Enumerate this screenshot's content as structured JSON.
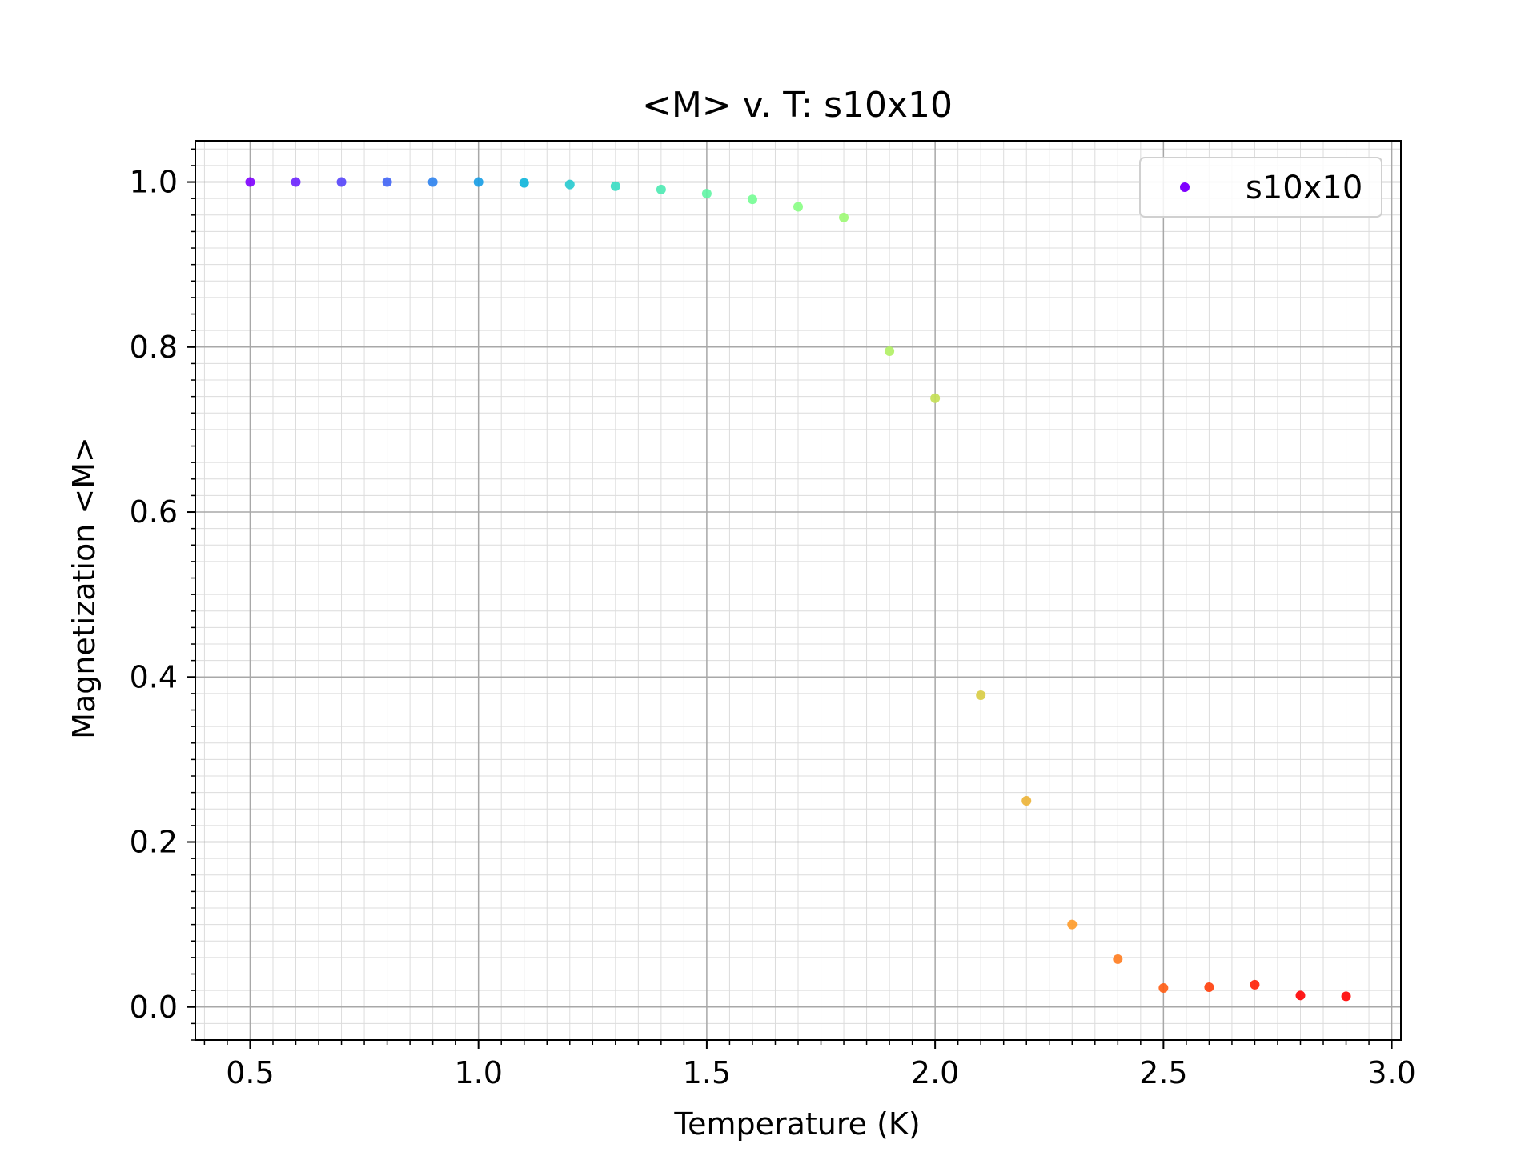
{
  "chart_data": {
    "type": "scatter",
    "title": "<M> v. T: s10x10",
    "xlabel": "Temperature (K)",
    "ylabel": "Magnetization <M>",
    "xlim": [
      0.38,
      3.02
    ],
    "ylim": [
      -0.04,
      1.05
    ],
    "x_ticks": [
      0.5,
      1.0,
      1.5,
      2.0,
      2.5,
      3.0
    ],
    "x_tick_labels": [
      "0.5",
      "1.0",
      "1.5",
      "2.0",
      "2.5",
      "3.0"
    ],
    "y_ticks": [
      0.0,
      0.2,
      0.4,
      0.6,
      0.8,
      1.0
    ],
    "y_tick_labels": [
      "0.0",
      "0.2",
      "0.4",
      "0.6",
      "0.8",
      "1.0"
    ],
    "x_minor_step": 0.05,
    "y_minor_step": 0.02,
    "grid": {
      "major": true,
      "minor": true
    },
    "legend": {
      "position": "top-right",
      "entries": [
        "s10x10"
      ]
    },
    "colormap": "rainbow",
    "series": [
      {
        "name": "s10x10",
        "legend_color": "#7f00ff",
        "x": [
          0.5,
          0.6,
          0.7,
          0.8,
          0.9,
          1.0,
          1.1,
          1.2,
          1.3,
          1.4,
          1.5,
          1.6,
          1.7,
          1.8,
          1.9,
          2.0,
          2.1,
          2.2,
          2.3,
          2.4,
          2.5,
          2.6,
          2.7,
          2.8,
          2.9
        ],
        "y": [
          1.0,
          1.0,
          1.0,
          1.0,
          1.0,
          1.0,
          0.999,
          0.997,
          0.995,
          0.991,
          0.986,
          0.979,
          0.97,
          0.957,
          0.795,
          0.738,
          0.378,
          0.25,
          0.1,
          0.058,
          0.023,
          0.024,
          0.027,
          0.014,
          0.013
        ],
        "colors": [
          "#7f00ff",
          "#6a22fe",
          "#5544fb",
          "#4064f5",
          "#2c82ee",
          "#169de5",
          "#0cb5da",
          "#26cacf",
          "#38dcc2",
          "#4ceab3",
          "#60f5a4",
          "#74fd94",
          "#88fe83",
          "#9cf973",
          "#b0ef63",
          "#c4e053",
          "#d8cc43",
          "#ecb335",
          "#ff9a28",
          "#ff7b1d",
          "#ff5c12",
          "#ff3d09",
          "#ff1f03",
          "#ff0000",
          "#ff0000"
        ]
      }
    ]
  }
}
